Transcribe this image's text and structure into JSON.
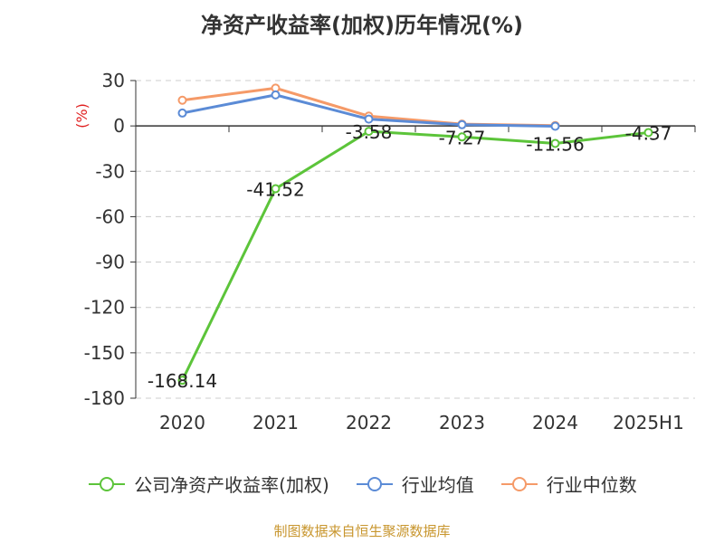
{
  "title": "净资产收益率(加权)历年情况(%)",
  "source": "制图数据来自恒生聚源数据库",
  "colors": {
    "company": "#5cc43a",
    "industry_avg": "#5b8bd6",
    "industry_median": "#f59a68",
    "ylabel": "#e02020"
  },
  "chart_data": {
    "type": "line",
    "title": "净资产收益率(加权)历年情况(%)",
    "ylabel": "(%)",
    "xlabel": "",
    "categories": [
      "2020",
      "2021",
      "2022",
      "2023",
      "2024",
      "2025H1"
    ],
    "ylim": [
      -180,
      30
    ],
    "yticks": [
      30,
      0,
      -30,
      -60,
      -90,
      -120,
      -150,
      -180
    ],
    "grid": true,
    "legend": "bottom",
    "series": [
      {
        "name": "公司净资产收益率(加权)",
        "values": [
          -168.14,
          -41.52,
          -3.58,
          -7.27,
          -11.56,
          -4.37
        ],
        "labels": [
          "-168.14",
          "-41.52",
          "-3.58",
          "-7.27",
          "-11.56",
          "-4.37"
        ]
      },
      {
        "name": "行业均值",
        "values": [
          8.5,
          20.5,
          4.5,
          0.8,
          -0.2,
          null
        ]
      },
      {
        "name": "行业中位数",
        "values": [
          17.0,
          25.0,
          6.5,
          1.2,
          0.2,
          null
        ]
      }
    ]
  }
}
